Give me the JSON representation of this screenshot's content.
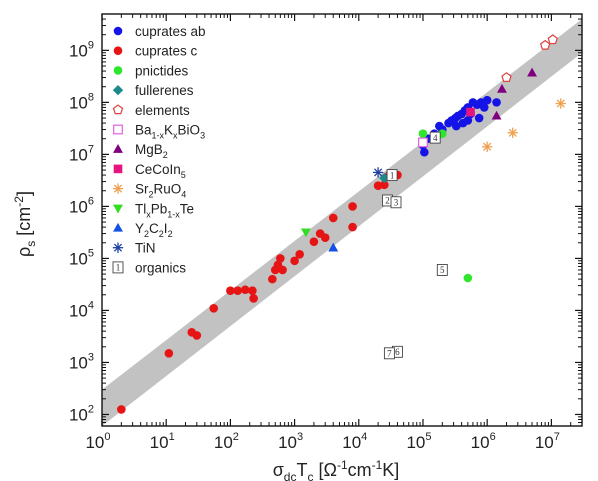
{
  "chart_data": {
    "type": "scatter",
    "x_scale": "log",
    "y_scale": "log",
    "xlim": [
      1,
      30000000
    ],
    "ylim": [
      60,
      5000000000
    ],
    "x_ticks": [
      {
        "base": "10",
        "exp": "0"
      },
      {
        "base": "10",
        "exp": "1"
      },
      {
        "base": "10",
        "exp": "2"
      },
      {
        "base": "10",
        "exp": "3"
      },
      {
        "base": "10",
        "exp": "4"
      },
      {
        "base": "10",
        "exp": "5"
      },
      {
        "base": "10",
        "exp": "6"
      },
      {
        "base": "10",
        "exp": "7"
      }
    ],
    "y_ticks": [
      {
        "base": "10",
        "exp": "2"
      },
      {
        "base": "10",
        "exp": "3"
      },
      {
        "base": "10",
        "exp": "4"
      },
      {
        "base": "10",
        "exp": "5"
      },
      {
        "base": "10",
        "exp": "6"
      },
      {
        "base": "10",
        "exp": "7"
      },
      {
        "base": "10",
        "exp": "8"
      },
      {
        "base": "10",
        "exp": "9"
      }
    ],
    "xlabel": {
      "main": "σ",
      "sub1": "dc",
      "mid": "T",
      "sub2": "c",
      "rest": " [Ω",
      "sup1": "-1",
      "rest2": "cm",
      "sup2": "-1",
      "rest3": "K]"
    },
    "ylabel": {
      "main": "ρ",
      "sub": "s",
      "rest": " [cm",
      "sup": "-2",
      "rest2": "]"
    },
    "band": {
      "color": "#c2c2c2",
      "lower": [
        [
          1,
          60
        ],
        [
          30000000,
          900000000
        ]
      ],
      "upper": [
        [
          1,
          300
        ],
        [
          30000000,
          4000000000
        ]
      ]
    },
    "legend_position": "top-left",
    "legend": [
      {
        "marker": "circle",
        "color": "#1414e6",
        "parts": [
          {
            "t": "cuprates ab"
          }
        ]
      },
      {
        "marker": "circle",
        "color": "#e61414",
        "parts": [
          {
            "t": "cuprates c"
          }
        ]
      },
      {
        "marker": "circle",
        "color": "#2ee62e",
        "parts": [
          {
            "t": "pnictides"
          }
        ]
      },
      {
        "marker": "diamond",
        "color": "#1a8a8a",
        "parts": [
          {
            "t": "fullerenes"
          }
        ]
      },
      {
        "marker": "pentagon-open",
        "color": "#e04040",
        "parts": [
          {
            "t": "elements"
          }
        ]
      },
      {
        "marker": "square-open",
        "color": "#e060e0",
        "parts": [
          {
            "t": "Ba"
          },
          {
            "t": "1-x",
            "s": "sub"
          },
          {
            "t": "K"
          },
          {
            "t": "x",
            "s": "sub"
          },
          {
            "t": "BiO"
          },
          {
            "t": "3",
            "s": "sub"
          }
        ]
      },
      {
        "marker": "triangle-up",
        "color": "#800080",
        "parts": [
          {
            "t": "MgB"
          },
          {
            "t": "2",
            "s": "sub"
          }
        ]
      },
      {
        "marker": "square",
        "color": "#e6147f",
        "parts": [
          {
            "t": "CeCoIn"
          },
          {
            "t": "5",
            "s": "sub"
          }
        ]
      },
      {
        "marker": "asterisk",
        "color": "#f0a050",
        "parts": [
          {
            "t": "Sr"
          },
          {
            "t": "2",
            "s": "sub"
          },
          {
            "t": "RuO"
          },
          {
            "t": "4",
            "s": "sub"
          }
        ]
      },
      {
        "marker": "triangle-down",
        "color": "#33dd22",
        "parts": [
          {
            "t": "Tl"
          },
          {
            "t": "x",
            "s": "sub"
          },
          {
            "t": "Pb"
          },
          {
            "t": "1-x",
            "s": "sub"
          },
          {
            "t": "Te"
          }
        ]
      },
      {
        "marker": "triangle-up",
        "color": "#1450e6",
        "parts": [
          {
            "t": "Y"
          },
          {
            "t": "2",
            "s": "sub"
          },
          {
            "t": "C"
          },
          {
            "t": "2",
            "s": "sub"
          },
          {
            "t": "I"
          },
          {
            "t": "2",
            "s": "sub"
          }
        ]
      },
      {
        "marker": "asterisk",
        "color": "#2040a0",
        "parts": [
          {
            "t": "TiN"
          }
        ]
      },
      {
        "marker": "numbered-box",
        "color": "#444444",
        "label": "1",
        "parts": [
          {
            "t": "organics"
          }
        ]
      }
    ],
    "series": [
      {
        "name": "cuprates ab",
        "marker": "circle",
        "color": "#1414e6",
        "points": [
          [
            100000,
            15000000
          ],
          [
            105000,
            11000000
          ],
          [
            120000,
            20000000
          ],
          [
            150000,
            25000000
          ],
          [
            180000,
            35000000
          ],
          [
            200000,
            30000000
          ],
          [
            250000,
            40000000
          ],
          [
            280000,
            45000000
          ],
          [
            320000,
            50000000
          ],
          [
            350000,
            55000000
          ],
          [
            330000,
            35000000
          ],
          [
            400000,
            60000000
          ],
          [
            420000,
            40000000
          ],
          [
            450000,
            70000000
          ],
          [
            500000,
            80000000
          ],
          [
            550000,
            60000000
          ],
          [
            600000,
            100000000
          ],
          [
            700000,
            90000000
          ],
          [
            800000,
            100000000
          ],
          [
            900000,
            80000000
          ],
          [
            1000000,
            110000000
          ],
          [
            1400000,
            100000000
          ],
          [
            750000,
            50000000
          ],
          [
            500000,
            45000000
          ]
        ]
      },
      {
        "name": "cuprates c",
        "marker": "circle",
        "color": "#e61414",
        "points": [
          [
            2,
            125
          ],
          [
            11,
            1500
          ],
          [
            25,
            3800
          ],
          [
            30,
            3300
          ],
          [
            55,
            11000
          ],
          [
            100,
            24000
          ],
          [
            130,
            24000
          ],
          [
            170,
            25000
          ],
          [
            230,
            17000
          ],
          [
            220,
            24000
          ],
          [
            450,
            40000
          ],
          [
            500,
            60000
          ],
          [
            550,
            75000
          ],
          [
            600,
            100000
          ],
          [
            650,
            60000
          ],
          [
            1000,
            90000
          ],
          [
            1200,
            120000
          ],
          [
            2000,
            210000
          ],
          [
            2500,
            300000
          ],
          [
            3000,
            250000
          ],
          [
            4000,
            600000
          ],
          [
            8000,
            400000
          ],
          [
            8000,
            1000000
          ],
          [
            20000,
            2500000
          ],
          [
            25000,
            2600000
          ],
          [
            30000,
            4000000
          ],
          [
            40000,
            4000000
          ]
        ]
      },
      {
        "name": "pnictides",
        "marker": "circle",
        "color": "#2ee62e",
        "points": [
          [
            100000,
            25000000
          ],
          [
            200000,
            25000000
          ],
          [
            500000,
            42000
          ]
        ]
      },
      {
        "name": "fullerenes",
        "marker": "diamond",
        "color": "#1a8a8a",
        "points": [
          [
            25000,
            3500000
          ]
        ]
      },
      {
        "name": "elements",
        "marker": "pentagon-open",
        "color": "#e04040",
        "points": [
          [
            2000000,
            300000000
          ],
          [
            8000000,
            1250000000
          ],
          [
            10500000,
            1600000000
          ]
        ]
      },
      {
        "name": "Ba1-xKxBiO3",
        "marker": "square-open",
        "color": "#e060e0",
        "points": [
          [
            100000,
            17000000
          ]
        ]
      },
      {
        "name": "MgB2",
        "marker": "triangle-up",
        "color": "#800080",
        "points": [
          [
            1400000,
            55000000
          ],
          [
            1700000,
            180000000
          ],
          [
            5000000,
            370000000
          ]
        ]
      },
      {
        "name": "CeCoIn5",
        "marker": "square",
        "color": "#e6147f",
        "points": [
          [
            550000,
            65000000
          ]
        ]
      },
      {
        "name": "Sr2RuO4",
        "marker": "asterisk",
        "color": "#f0a050",
        "points": [
          [
            1000000,
            14000000
          ],
          [
            2500000,
            26000000
          ],
          [
            14000000,
            95000000
          ]
        ]
      },
      {
        "name": "TlxPb1-xTe",
        "marker": "triangle-down",
        "color": "#33dd22",
        "points": [
          [
            1500,
            320000
          ]
        ]
      },
      {
        "name": "Y2C2I2",
        "marker": "triangle-up",
        "color": "#1450e6",
        "points": [
          [
            4000,
            160000
          ]
        ]
      },
      {
        "name": "TiN",
        "marker": "asterisk",
        "color": "#2040a0",
        "points": [
          [
            20000,
            4500000
          ]
        ]
      }
    ],
    "organics": [
      {
        "label": "1",
        "x": 33000,
        "y": 4000000
      },
      {
        "label": "2",
        "x": 28000,
        "y": 1300000
      },
      {
        "label": "3",
        "x": 38000,
        "y": 1200000
      },
      {
        "label": "4",
        "x": 155000,
        "y": 21000000
      },
      {
        "label": "5",
        "x": 200000,
        "y": 60000
      },
      {
        "label": "6",
        "x": 40000,
        "y": 1600
      },
      {
        "label": "7",
        "x": 30000,
        "y": 1500
      }
    ]
  }
}
